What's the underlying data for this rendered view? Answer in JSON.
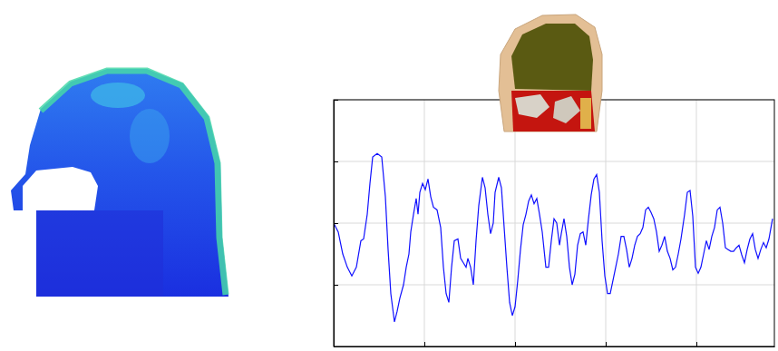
{
  "chart_data": {
    "type": "line",
    "color": "#1010ff",
    "grid": true,
    "tick_labels": false,
    "xlim": [
      0,
      486
    ],
    "ylim": [
      -140,
      140
    ],
    "xticks": [
      0,
      100,
      200,
      300,
      400
    ],
    "yticks": [
      -140,
      -70,
      0,
      70,
      140
    ],
    "x": [
      0,
      5,
      10,
      15,
      20,
      25,
      30,
      33,
      37,
      40,
      43,
      48,
      53,
      57,
      60,
      63,
      67,
      70,
      73,
      77,
      80,
      83,
      85,
      88,
      91,
      93,
      95,
      98,
      101,
      104,
      107,
      110,
      114,
      118,
      121,
      124,
      127,
      130,
      133,
      137,
      140,
      143,
      146,
      148,
      151,
      154,
      157,
      160,
      164,
      167,
      170,
      173,
      176,
      178,
      182,
      185,
      188,
      191,
      194,
      197,
      200,
      203,
      206,
      209,
      212,
      215,
      218,
      221,
      224,
      227,
      230,
      234,
      237,
      240,
      243,
      246,
      249,
      251,
      254,
      257,
      260,
      263,
      266,
      269,
      272,
      275,
      278,
      281,
      284,
      287,
      290,
      293,
      296,
      299,
      302,
      305,
      308,
      311,
      314,
      317,
      320,
      323,
      326,
      329,
      332,
      335,
      338,
      341,
      344,
      347,
      350,
      353,
      356,
      359,
      362,
      365,
      368,
      371,
      374,
      377,
      380,
      383,
      387,
      390,
      393,
      396,
      399,
      402,
      405,
      408,
      411,
      414,
      417,
      420,
      423,
      426,
      429,
      432,
      435,
      438,
      441,
      444,
      447,
      450,
      453,
      456,
      459,
      462,
      465,
      468,
      471,
      474,
      477,
      480,
      484
    ],
    "values": [
      0,
      -10,
      -35,
      -50,
      -60,
      -50,
      -20,
      -18,
      10,
      45,
      75,
      79,
      75,
      30,
      -30,
      -80,
      -112,
      -100,
      -85,
      -70,
      -50,
      -35,
      -10,
      10,
      28,
      10,
      35,
      45,
      38,
      50,
      30,
      18,
      15,
      -5,
      -50,
      -80,
      -90,
      -50,
      -20,
      -18,
      -40,
      -45,
      -50,
      -40,
      -50,
      -70,
      -20,
      20,
      52,
      40,
      10,
      -12,
      0,
      35,
      52,
      40,
      -5,
      -50,
      -90,
      -105,
      -95,
      -65,
      -30,
      -2,
      10,
      25,
      32,
      22,
      28,
      10,
      -10,
      -50,
      -50,
      -20,
      5,
      0,
      -25,
      -12,
      5,
      -15,
      -50,
      -70,
      -58,
      -25,
      -12,
      -10,
      -25,
      5,
      32,
      50,
      55,
      35,
      -20,
      -60,
      -80,
      -80,
      -65,
      -50,
      -35,
      -15,
      -15,
      -30,
      -50,
      -40,
      -25,
      -15,
      -12,
      -5,
      15,
      18,
      12,
      5,
      -10,
      -32,
      -25,
      -15,
      -32,
      -40,
      -53,
      -50,
      -35,
      -18,
      10,
      35,
      37,
      8,
      -50,
      -57,
      -50,
      -35,
      -20,
      -30,
      -15,
      -5,
      15,
      18,
      0,
      -28,
      -30,
      -32,
      -32,
      -28,
      -25,
      -36,
      -45,
      -30,
      -18,
      -12,
      -30,
      -40,
      -30,
      -22,
      -28,
      -18,
      5
    ]
  }
}
